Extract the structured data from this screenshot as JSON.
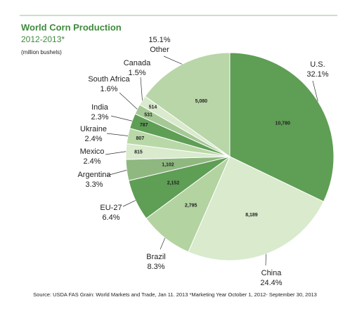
{
  "chart_data": {
    "type": "pie",
    "title": "World Corn Production",
    "subtitle": "2012-2013*",
    "unit_note": "(million bushels)",
    "source": "Source: USDA FAS Grain: World Markets and Trade, Jan 11. 2013 *Marketing Year October 1, 2012- September 30, 2013",
    "categories": [
      "U.S.",
      "China",
      "Brazil",
      "EU-27",
      "Argentina",
      "Mexico",
      "Ukraine",
      "India",
      "South Africa",
      "Canada",
      "Other"
    ],
    "values": [
      10780,
      8189,
      2795,
      2152,
      1102,
      815,
      807,
      787,
      531,
      514,
      5080
    ],
    "value_labels": [
      "10,780",
      "8,189",
      "2,795",
      "2,152",
      "1,102",
      "815",
      "807",
      "787",
      "531",
      "514",
      "5,080"
    ],
    "share_labels": [
      "32.1%",
      "24.4%",
      "8.3%",
      "6.4%",
      "3.3%",
      "2.4%",
      "2.4%",
      "2.3%",
      "1.6%",
      "1.5%",
      "15.1%"
    ],
    "colors": [
      "#5f9e55",
      "#d9eacd",
      "#b3d3a0",
      "#5f9e55",
      "#8fb880",
      "#d9eacd",
      "#b9d8a8",
      "#5f9e55",
      "#a5c995",
      "#d9eacd",
      "#b8d6a8"
    ]
  }
}
